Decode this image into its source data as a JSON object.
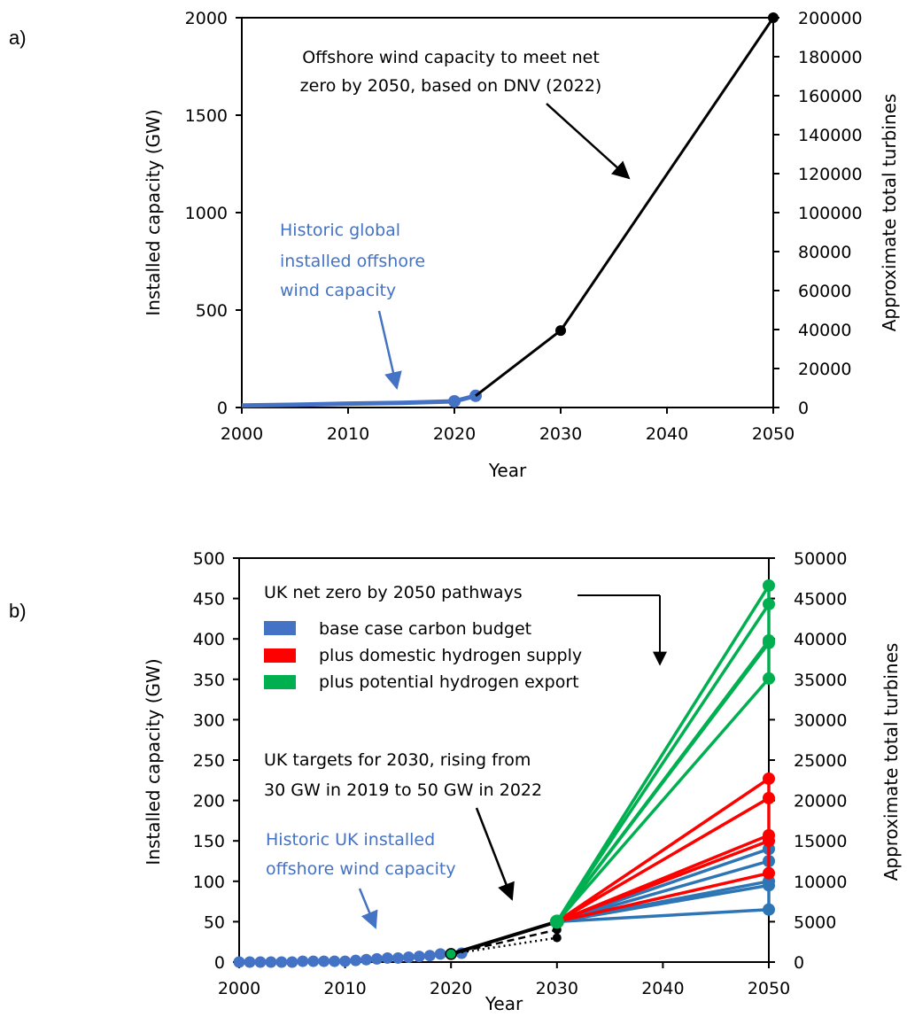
{
  "charts": [
    {
      "panel_label": "a)",
      "type": "line",
      "xlabel": "Year",
      "ylabel_left": "Installed capacity (GW)",
      "ylabel_right": "Approximate total turbines",
      "xlim": [
        2000,
        2050
      ],
      "ylim": [
        0,
        2000
      ],
      "ylim_right": [
        0,
        200000
      ],
      "xticks": [
        2000,
        2010,
        2020,
        2030,
        2040,
        2050
      ],
      "yticks": [
        0,
        500,
        1000,
        1500,
        2000
      ],
      "yticks_right": [
        0,
        20000,
        40000,
        60000,
        80000,
        100000,
        120000,
        140000,
        160000,
        180000,
        200000
      ],
      "series": [
        {
          "name": "Historic global installed offshore wind capacity",
          "color": "#4472c4",
          "line_width": 5,
          "marker_size": 7,
          "points": [
            [
              2000,
              10
            ],
            [
              2005,
              14
            ],
            [
              2010,
              20
            ],
            [
              2015,
              24
            ],
            [
              2020,
              32
            ],
            [
              2022,
              60
            ]
          ],
          "markers": [
            [
              2020,
              32
            ],
            [
              2022,
              60
            ]
          ]
        },
        {
          "name": "Offshore wind capacity to meet net zero by 2050, based on DNV (2022)",
          "color": "#000000",
          "line_width": 3,
          "marker_size": 6,
          "points": [
            [
              2022,
              60
            ],
            [
              2030,
              395
            ],
            [
              2050,
              2000
            ]
          ],
          "markers": [
            [
              2030,
              395
            ],
            [
              2050,
              2000
            ]
          ]
        }
      ],
      "annotations": [
        {
          "lines": [
            "Offshore wind capacity to meet net",
            "zero by 2050, based on DNV (2022)"
          ],
          "color": "#000000",
          "anchor": "top-center"
        },
        {
          "lines": [
            "Historic global",
            "installed offshore",
            "wind capacity"
          ],
          "color": "#4472c4",
          "anchor": "left"
        }
      ]
    },
    {
      "panel_label": "b)",
      "type": "line",
      "xlabel": "Year",
      "ylabel_left": "Installed capacity (GW)",
      "ylabel_right": "Approximate total turbines",
      "xlim": [
        2000,
        2050
      ],
      "ylim": [
        0,
        500
      ],
      "ylim_right": [
        0,
        50000
      ],
      "xticks": [
        2000,
        2010,
        2020,
        2030,
        2040,
        2050
      ],
      "yticks": [
        0,
        50,
        100,
        150,
        200,
        250,
        300,
        350,
        400,
        450,
        500
      ],
      "yticks_right": [
        0,
        5000,
        10000,
        15000,
        20000,
        25000,
        30000,
        35000,
        40000,
        45000,
        50000
      ],
      "legend_title": "UK net zero by 2050 pathways",
      "legend": [
        {
          "label": "base case carbon budget",
          "color": "#2e75b6"
        },
        {
          "label": "plus domestic hydrogen supply",
          "color": "#ff0000"
        },
        {
          "label": "plus potential hydrogen export",
          "color": "#00b050"
        }
      ],
      "historic_uk": {
        "name": "Historic UK installed offshore wind capacity",
        "color": "#4472c4",
        "points": [
          [
            2000,
            0
          ],
          [
            2001,
            0
          ],
          [
            2002,
            0
          ],
          [
            2003,
            0
          ],
          [
            2004,
            0
          ],
          [
            2005,
            0
          ],
          [
            2006,
            1
          ],
          [
            2007,
            1
          ],
          [
            2008,
            1
          ],
          [
            2009,
            1
          ],
          [
            2010,
            1
          ],
          [
            2011,
            2
          ],
          [
            2012,
            3
          ],
          [
            2013,
            4
          ],
          [
            2014,
            5
          ],
          [
            2015,
            5
          ],
          [
            2016,
            6
          ],
          [
            2017,
            7
          ],
          [
            2018,
            8
          ],
          [
            2019,
            10
          ],
          [
            2020,
            10
          ],
          [
            2021,
            11
          ]
        ]
      },
      "targets_2030": [
        {
          "from": [
            2020,
            10
          ],
          "to": [
            2030,
            50
          ],
          "style": "solid"
        },
        {
          "from": [
            2020,
            10
          ],
          "to": [
            2030,
            40
          ],
          "style": "dashed"
        },
        {
          "from": [
            2020,
            10
          ],
          "to": [
            2030,
            30
          ],
          "style": "dotted"
        }
      ],
      "pathways_2050": [
        {
          "color": "#2e75b6",
          "values": [
            65,
            95,
            100,
            125,
            140
          ]
        },
        {
          "color": "#ff0000",
          "values": [
            110,
            150,
            157,
            203,
            227
          ]
        },
        {
          "color": "#00b050",
          "values": [
            351,
            395,
            398,
            443,
            466
          ]
        }
      ],
      "annotations": [
        {
          "lines": [
            "UK targets for 2030, rising from",
            "30 GW in 2019 to 50 GW in 2022"
          ],
          "color": "#000000"
        },
        {
          "lines": [
            "Historic UK installed",
            "offshore wind capacity"
          ],
          "color": "#4472c4"
        }
      ]
    }
  ]
}
